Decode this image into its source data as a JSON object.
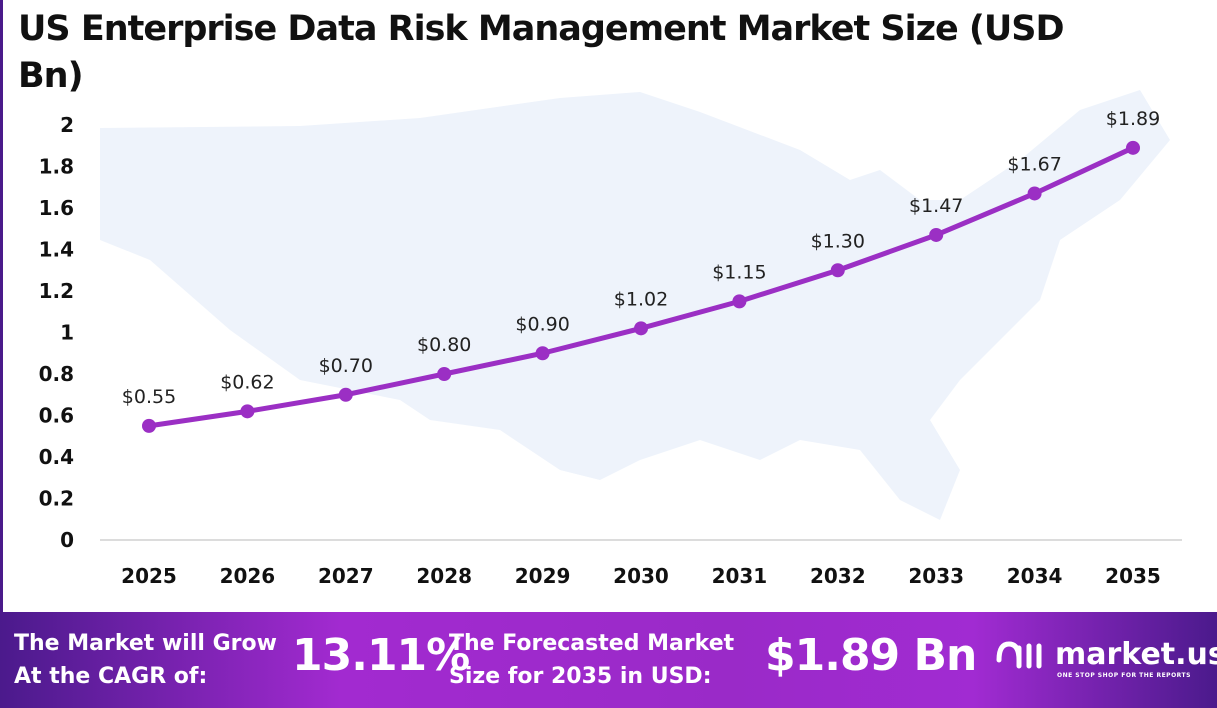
{
  "title": "US Enterprise Data Risk Management Market Size (USD Bn)",
  "chart_data": {
    "type": "line",
    "title": "US Enterprise Data Risk Management Market Size (USD Bn)",
    "categories": [
      "2025",
      "2026",
      "2027",
      "2028",
      "2029",
      "2030",
      "2031",
      "2032",
      "2033",
      "2034",
      "2035"
    ],
    "values": [
      0.55,
      0.62,
      0.7,
      0.8,
      0.9,
      1.02,
      1.15,
      1.3,
      1.47,
      1.67,
      1.89
    ],
    "data_labels": [
      "$0.55",
      "$0.62",
      "$0.70",
      "$0.80",
      "$0.90",
      "$1.02",
      "$1.15",
      "$1.30",
      "$1.47",
      "$1.67",
      "$1.89"
    ],
    "yticks": [
      "0",
      "0.2",
      "0.4",
      "0.6",
      "0.8",
      "1",
      "1.2",
      "1.4",
      "1.6",
      "1.8",
      "2"
    ],
    "ylim": [
      0,
      2
    ],
    "grid": false,
    "color": "#9b2fc4"
  },
  "footer": {
    "cagr_label": "The Market will Grow At the CAGR of:",
    "cagr_value": "13.11%",
    "forecast_label": "The Forecasted Market Size for 2035 in USD:",
    "forecast_value": "$1.89 Bn",
    "logo_name": "market.us",
    "logo_tagline": "ONE STOP SHOP FOR THE REPORTS"
  }
}
